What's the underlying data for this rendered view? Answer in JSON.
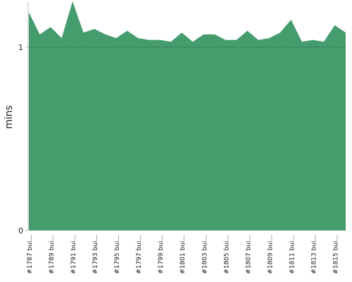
{
  "chart_data": {
    "type": "area",
    "y_label": "mins",
    "categories": [
      "#1787 bui...",
      null,
      "#1789 bui...",
      null,
      "#1791 bui...",
      null,
      "#1793 bui...",
      null,
      "#1795 bui...",
      null,
      "#1797 bui...",
      null,
      "#1799 bui...",
      null,
      "#1801 bui...",
      null,
      "#1803 bui...",
      null,
      "#1805 bui...",
      null,
      "#1807 bui...",
      null,
      "#1809 bui...",
      null,
      "#1811 bui...",
      null,
      "#1813 bui...",
      null,
      "#1815 bui...",
      null
    ],
    "values": [
      1.19,
      1.07,
      1.11,
      1.05,
      1.25,
      1.08,
      1.1,
      1.07,
      1.05,
      1.09,
      1.05,
      1.04,
      1.04,
      1.03,
      1.08,
      1.03,
      1.07,
      1.07,
      1.04,
      1.04,
      1.09,
      1.04,
      1.05,
      1.08,
      1.15,
      1.03,
      1.04,
      1.03,
      1.12,
      1.08
    ],
    "color": "#459c6c",
    "ylim": [
      0,
      1.25
    ],
    "yticks": [
      0,
      1
    ],
    "grid": true
  }
}
